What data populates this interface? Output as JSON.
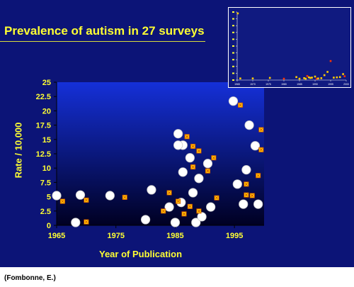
{
  "title": "Prevalence of autism in 27 surveys",
  "source_note": "(Fombonne, E.)",
  "colors": {
    "slide_background": "#0c1477",
    "plot_gradient_top": "#1530d8",
    "plot_gradient_bottom": "#000022",
    "text": "#ffff33",
    "circle_marker": "#ffffff",
    "square_marker": "#ffcc00"
  },
  "chart_data": [
    {
      "type": "scatter",
      "xlabel": "Year of Publication",
      "ylabel": "Rate / 10,000",
      "xlim": [
        1965,
        2000
      ],
      "ylim": [
        0,
        25
      ],
      "x_ticks": [
        "1965",
        "1975",
        "1985",
        "1995"
      ],
      "x_tick_values": [
        1965,
        1975,
        1985,
        1995
      ],
      "y_ticks": [
        "0",
        "2.5",
        "5",
        "7.5",
        "10",
        "12.5",
        "15",
        "17.5",
        "20",
        "22.5",
        "25"
      ],
      "y_tick_values": [
        0,
        2.5,
        5,
        7.5,
        10,
        12.5,
        15,
        17.5,
        20,
        22.5,
        25
      ],
      "grid": false,
      "legend": "none",
      "series": [
        {
          "marker": "circle",
          "points": [
            [
              1965,
              5.2
            ],
            [
              1968.2,
              0.5
            ],
            [
              1969,
              5.3
            ],
            [
              1974,
              5.2
            ],
            [
              1981,
              6.2
            ],
            [
              1984,
              3.2
            ],
            [
              1985.5,
              16.0
            ],
            [
              1986.3,
              14.0
            ],
            [
              1986.3,
              9.3
            ],
            [
              1987.5,
              11.8
            ],
            [
              1988.5,
              0.5
            ],
            [
              1989,
              8.2
            ],
            [
              1990.5,
              10.8
            ],
            [
              1991,
              3.2
            ],
            [
              1994.8,
              21.7
            ],
            [
              1995.5,
              7.2
            ],
            [
              1996.5,
              3.7
            ],
            [
              1997,
              9.7
            ],
            [
              1997.5,
              17.5
            ],
            [
              1998.5,
              13.9
            ],
            [
              1999,
              3.7
            ],
            [
              1980,
              1.0
            ],
            [
              1986,
              4.0
            ],
            [
              1988,
              5.7
            ],
            [
              1985,
              0.5
            ],
            [
              1989.5,
              1.5
            ],
            [
              1985.5,
              14.0
            ]
          ]
        },
        {
          "marker": "square",
          "points": [
            [
              1966,
              4.2
            ],
            [
              1970,
              4.4
            ],
            [
              1970,
              0.6
            ],
            [
              1976.5,
              4.9
            ],
            [
              1983,
              2.5
            ],
            [
              1984,
              5.7
            ],
            [
              1985.5,
              4.2
            ],
            [
              1986.5,
              2.0
            ],
            [
              1987,
              15.5
            ],
            [
              1987.5,
              3.3
            ],
            [
              1988,
              13.8
            ],
            [
              1988,
              10.2
            ],
            [
              1989,
              13.0
            ],
            [
              1989,
              2.5
            ],
            [
              1990.5,
              9.5
            ],
            [
              1991.5,
              11.8
            ],
            [
              1992,
              4.8
            ],
            [
              1996,
              21.0
            ],
            [
              1997,
              7.2
            ],
            [
              1997,
              5.3
            ],
            [
              1998,
              5.2
            ],
            [
              1999,
              8.7
            ],
            [
              1999.5,
              16.7
            ],
            [
              1999.5,
              13.2
            ]
          ]
        }
      ]
    },
    {
      "type": "scatter",
      "xlim": [
        1965,
        2000
      ],
      "ylim": [
        0,
        25
      ],
      "x_ticks": [
        "1965",
        "1970",
        "1975",
        "1980",
        "1985",
        "1990",
        "1995",
        "2000"
      ],
      "x_tick_values": [
        1965,
        1970,
        1975,
        1980,
        1985,
        1990,
        1995,
        2000
      ],
      "y_tick_values": [
        0,
        2.5,
        5,
        7.5,
        10,
        12.5,
        15,
        17.5,
        20,
        22.5,
        25
      ],
      "grid": false,
      "legend": "none",
      "series": [
        {
          "marker": "square",
          "points": [
            [
              1965.2,
              24.5
            ],
            [
              1966,
              0.6
            ],
            [
              1970,
              0.6
            ],
            [
              1975.5,
              0.8
            ],
            [
              1980,
              0.5
            ],
            [
              1984,
              1.1
            ],
            [
              1985,
              0.5
            ],
            [
              1986.5,
              0.7
            ],
            [
              1987,
              0.5
            ],
            [
              1987.5,
              1.5
            ],
            [
              1988,
              1.0
            ],
            [
              1988.5,
              0.8
            ],
            [
              1989,
              0.9
            ],
            [
              1990,
              1.3
            ],
            [
              1990.5,
              0.5
            ],
            [
              1991,
              0.6
            ],
            [
              1992,
              0.7
            ],
            [
              1993,
              1.8
            ],
            [
              1994,
              3.0
            ],
            [
              1995,
              7.0
            ],
            [
              1996,
              0.9
            ],
            [
              1997,
              1.0
            ],
            [
              1998,
              1.1
            ],
            [
              1999,
              2.2
            ],
            [
              1999.5,
              1.4
            ]
          ]
        }
      ]
    }
  ]
}
